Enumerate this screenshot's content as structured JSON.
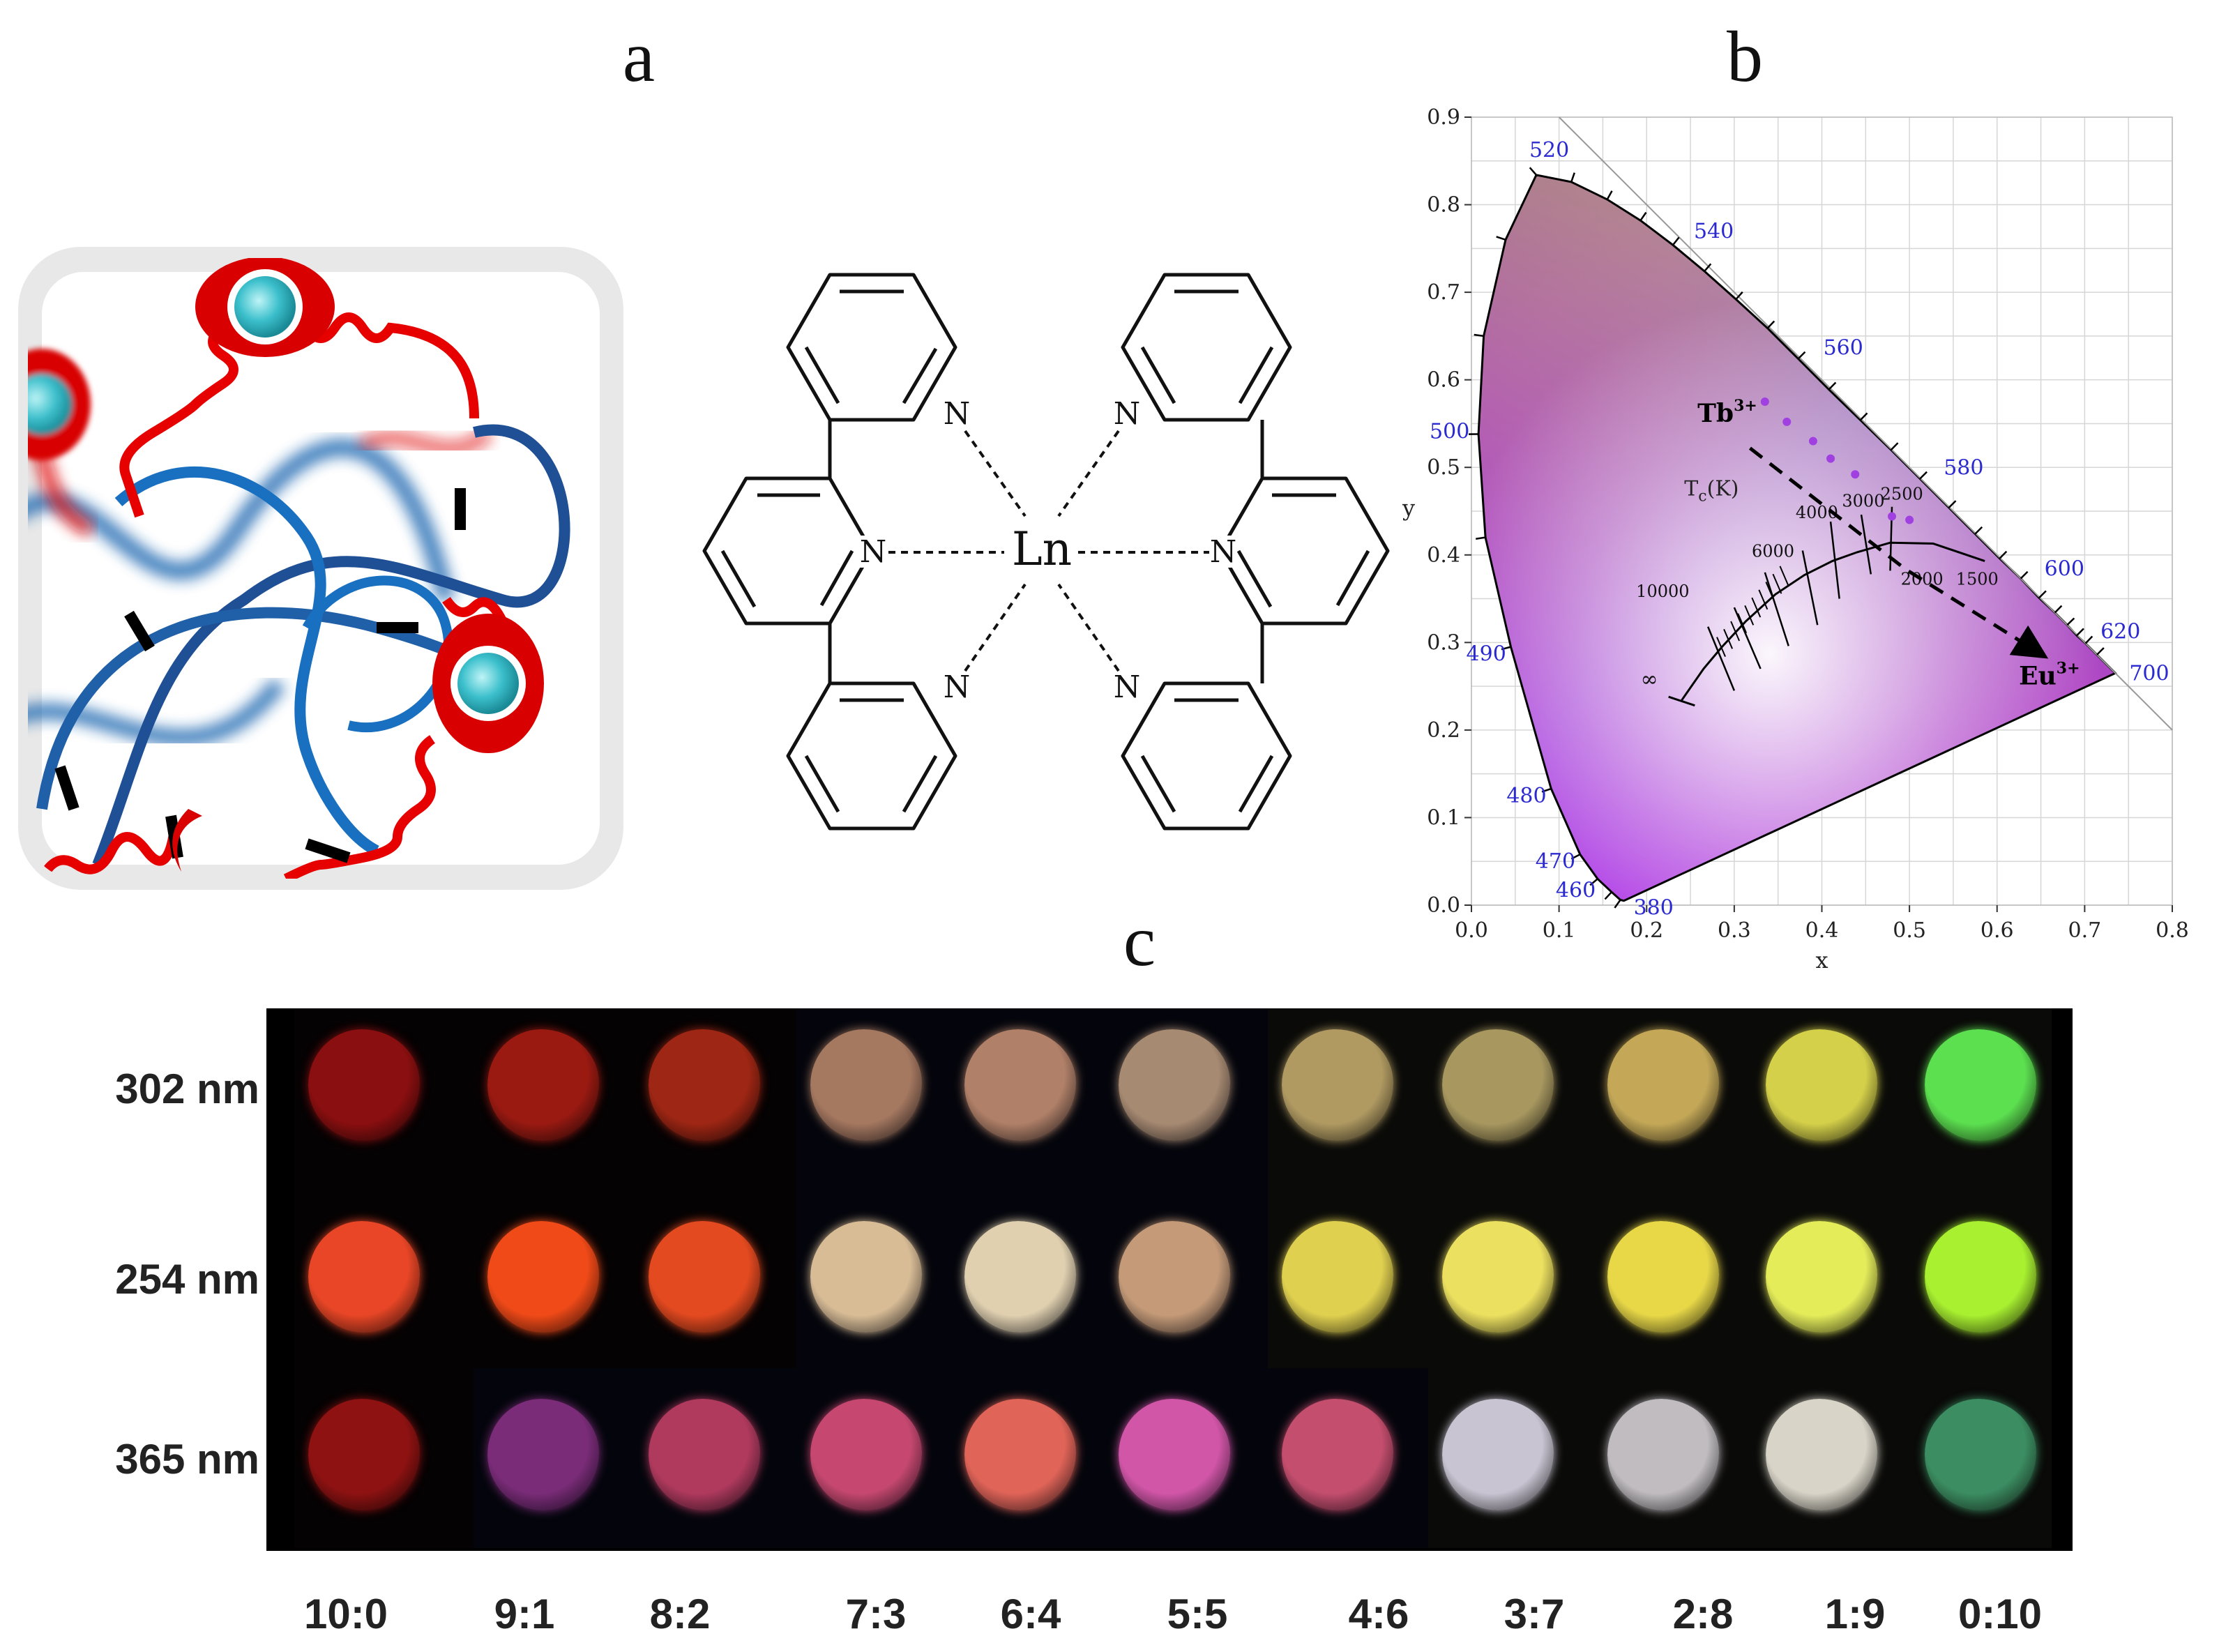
{
  "panels": {
    "a": "a",
    "b": "b",
    "c": "c"
  },
  "ligand": {
    "center": "Ln",
    "nitrogen": "N"
  },
  "cie": {
    "xlabel": "x",
    "ylabel": "y",
    "x_ticks": [
      "0.0",
      "0.1",
      "0.2",
      "0.3",
      "0.4",
      "0.5",
      "0.6",
      "0.7",
      "0.8"
    ],
    "y_ticks": [
      "0.0",
      "0.1",
      "0.2",
      "0.3",
      "0.4",
      "0.5",
      "0.6",
      "0.7",
      "0.8",
      "0.9"
    ],
    "xlim": [
      0,
      0.8
    ],
    "ylim": [
      0,
      0.9
    ],
    "wavelength_labels": [
      {
        "text": "520",
        "x": 0.074,
        "y": 0.834
      },
      {
        "text": "540",
        "x": 0.23,
        "y": 0.754
      },
      {
        "text": "560",
        "x": 0.373,
        "y": 0.624
      },
      {
        "text": "580",
        "x": 0.512,
        "y": 0.487
      },
      {
        "text": "600",
        "x": 0.627,
        "y": 0.373
      },
      {
        "text": "620",
        "x": 0.691,
        "y": 0.308
      },
      {
        "text": "700",
        "x": 0.735,
        "y": 0.265
      },
      {
        "text": "500",
        "x": 0.008,
        "y": 0.538
      },
      {
        "text": "490",
        "x": 0.045,
        "y": 0.295
      },
      {
        "text": "480",
        "x": 0.091,
        "y": 0.133
      },
      {
        "text": "470",
        "x": 0.124,
        "y": 0.058
      },
      {
        "text": "460",
        "x": 0.144,
        "y": 0.03
      },
      {
        "text": "380",
        "x": 0.174,
        "y": 0.005
      }
    ],
    "tc_label": "Tc(K)",
    "cct_labels": [
      "10000",
      "6000",
      "4000",
      "3000",
      "2500",
      "2000",
      "1500",
      "∞"
    ],
    "tb_label": "Tb",
    "tb_sup": "3+",
    "eu_label": "Eu",
    "eu_sup": "3+",
    "colors": {
      "tick_label_blue": "#2a2ad0",
      "point_purple": "#a040e0"
    }
  },
  "chart_data": {
    "type": "scatter",
    "title": "",
    "xlabel": "x",
    "ylabel": "y",
    "xlim": [
      0,
      0.8
    ],
    "ylim": [
      0,
      0.9
    ],
    "series": [
      {
        "name": "",
        "x": [
          0.335,
          0.36,
          0.39,
          0.41,
          0.438,
          0.48,
          0.5
        ],
        "y": [
          0.575,
          0.552,
          0.53,
          0.51,
          0.492,
          0.444,
          0.44
        ]
      }
    ]
  },
  "photo": {
    "row_labels": [
      "302 nm",
      "254 nm",
      "365 nm"
    ],
    "ratios": [
      "10:0",
      "9:1",
      "8:2",
      "7:3",
      "6:4",
      "5:5",
      "4:6",
      "3:7",
      "2:8",
      "1:9",
      "0:10"
    ],
    "sample_colors": [
      [
        "#8a0f10",
        "#9a1a12",
        "#9e2614",
        "#a57860",
        "#b08068",
        "#a78a72",
        "#b09a62",
        "#a89860",
        "#c4a858",
        "#d4d04a",
        "#5ce050"
      ],
      [
        "#e84626",
        "#f04a18",
        "#e44a20",
        "#d8bc96",
        "#e0d0b0",
        "#c49a78",
        "#e0d050",
        "#ece060",
        "#e8d848",
        "#e4ec5a",
        "#a8f030"
      ],
      [
        "#8e1212",
        "#7a2c78",
        "#b03a5e",
        "#c64870",
        "#e06458",
        "#d256a8",
        "#c44e6e",
        "#c8c4d2",
        "#c0bcc0",
        "#d8d4c8",
        "#3c8e62"
      ]
    ]
  }
}
